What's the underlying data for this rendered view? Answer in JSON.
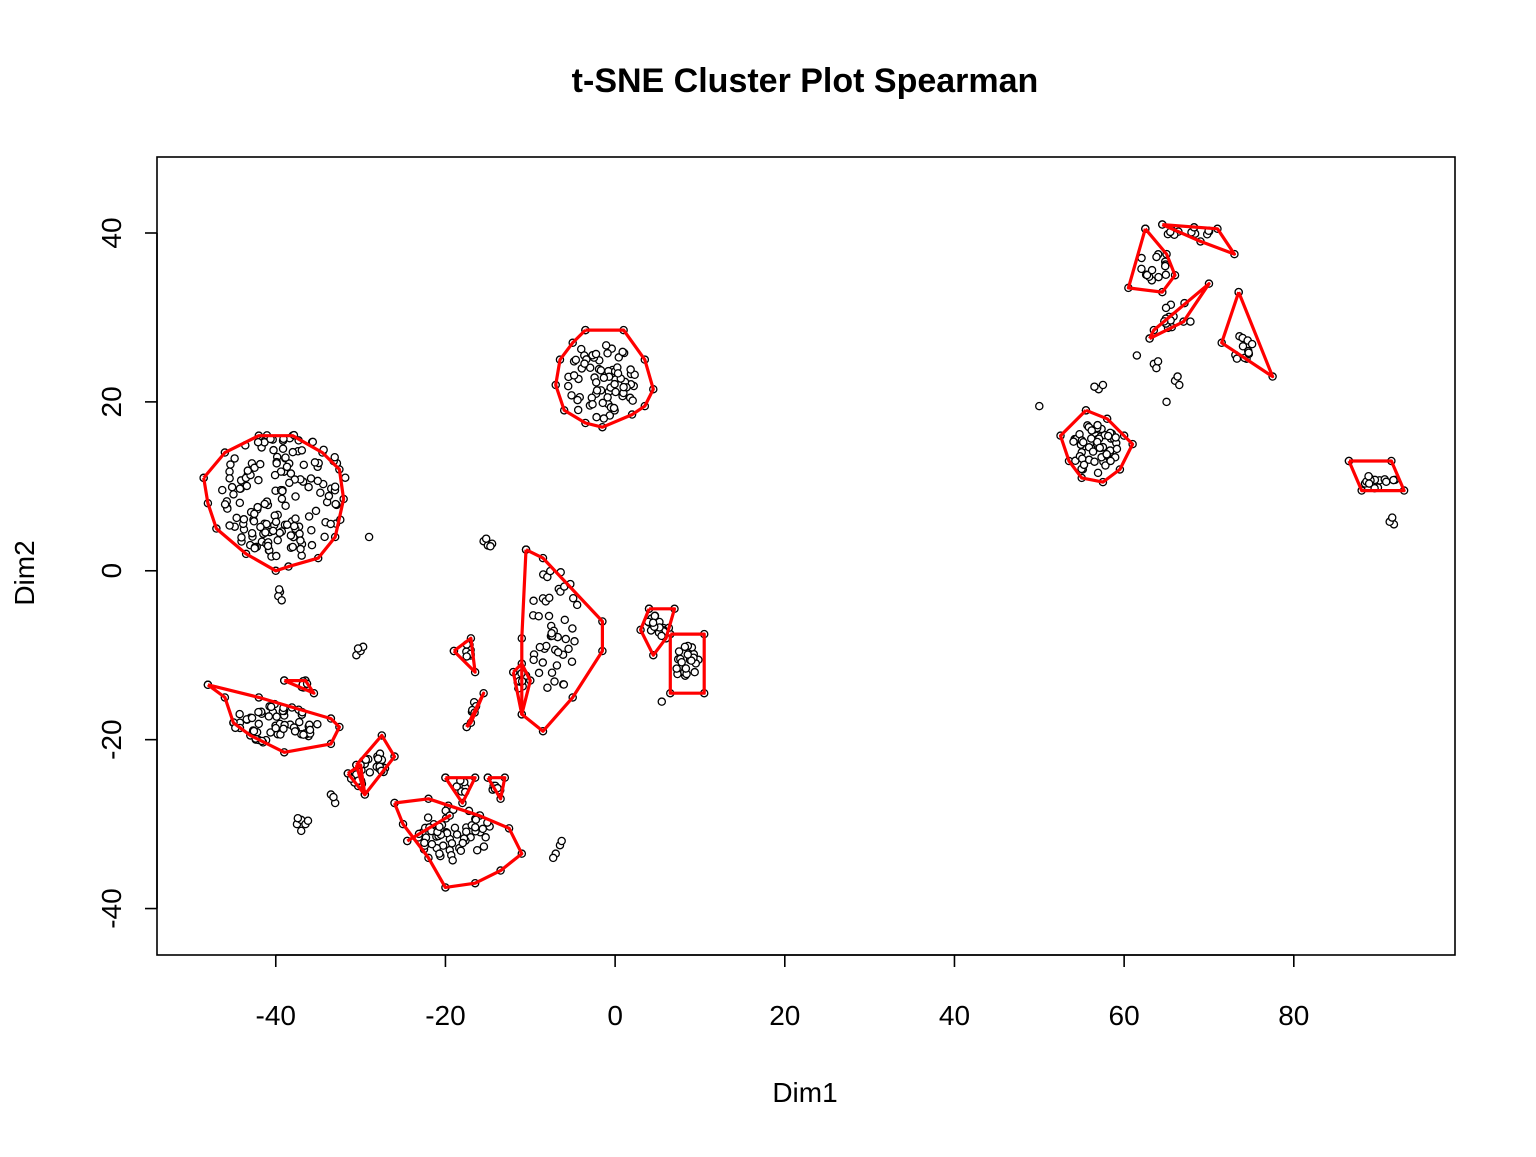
{
  "chart_data": {
    "type": "scatter",
    "title": "t-SNE Cluster Plot Spearman",
    "xlabel": "Dim1",
    "ylabel": "Dim2",
    "xlim": [
      -54,
      99
    ],
    "ylim": [
      -45.5,
      49
    ],
    "xticks": [
      -40,
      -20,
      0,
      20,
      40,
      60,
      80
    ],
    "xtick_labels": [
      "-40",
      "-20",
      "0",
      "20",
      "40",
      "60",
      "80"
    ],
    "yticks": [
      -40,
      -20,
      0,
      20,
      40
    ],
    "ytick_labels": [
      "-40",
      "-20",
      "0",
      "20",
      "40"
    ],
    "grid": false,
    "legend": "none",
    "colors": {
      "points": "#000000",
      "hulls": "#ff0000"
    },
    "clusters": [
      {
        "center": [
          -39,
          9
        ],
        "rx": 7.5,
        "ry": 7.5,
        "n": 160,
        "hull": [
          [
            -48.5,
            11
          ],
          [
            -46,
            14
          ],
          [
            -42,
            16
          ],
          [
            -38,
            16
          ],
          [
            -34.5,
            14
          ],
          [
            -32.5,
            12
          ],
          [
            -32,
            8.5
          ],
          [
            -33,
            4
          ],
          [
            -35,
            1.5
          ],
          [
            -38.5,
            0.5
          ],
          [
            -40,
            0
          ],
          [
            -43.5,
            2
          ],
          [
            -47,
            5
          ],
          [
            -48,
            8
          ],
          [
            -48.5,
            11
          ]
        ]
      },
      {
        "center": [
          -1.5,
          22.5
        ],
        "rx": 4.2,
        "ry": 4.8,
        "n": 70,
        "hull": [
          [
            -3.5,
            28.5
          ],
          [
            1,
            28.5
          ],
          [
            3.5,
            25
          ],
          [
            4.5,
            21.5
          ],
          [
            3.5,
            19.5
          ],
          [
            2,
            18.5
          ],
          [
            -1.5,
            17
          ],
          [
            -3.5,
            17.5
          ],
          [
            -6,
            19
          ],
          [
            -7,
            22
          ],
          [
            -6.5,
            25
          ],
          [
            -5,
            27
          ],
          [
            -3.5,
            28.5
          ]
        ]
      },
      {
        "center": [
          -7,
          -7
        ],
        "rx": 3.2,
        "ry": 7.5,
        "n": 45,
        "hull": [
          [
            -10.5,
            2.5
          ],
          [
            -8.5,
            1.5
          ],
          [
            -1.5,
            -6
          ],
          [
            -1.5,
            -9.5
          ],
          [
            -5,
            -15
          ],
          [
            -8.5,
            -19
          ],
          [
            -11,
            -17
          ],
          [
            -11,
            -8
          ],
          [
            -10.5,
            2.5
          ]
        ]
      },
      {
        "center": [
          -40,
          -18
        ],
        "rx": 5,
        "ry": 2.5,
        "n": 60,
        "hull": [
          [
            -48,
            -13.5
          ],
          [
            -46,
            -15
          ],
          [
            -45,
            -18
          ],
          [
            -43,
            -19.5
          ],
          [
            -39,
            -21.5
          ],
          [
            -33.5,
            -20.5
          ],
          [
            -32.5,
            -18.5
          ],
          [
            -33.5,
            -17.5
          ],
          [
            -42,
            -15
          ],
          [
            -48,
            -13.5
          ]
        ]
      },
      {
        "center": [
          -19,
          -31
        ],
        "rx": 4.5,
        "ry": 3.5,
        "n": 55,
        "hull": [
          [
            -26,
            -27.5
          ],
          [
            -22,
            -27
          ],
          [
            -16,
            -29
          ],
          [
            -12.5,
            -30.5
          ],
          [
            -11,
            -33.5
          ],
          [
            -13.5,
            -35.5
          ],
          [
            -16.5,
            -37
          ],
          [
            -20,
            -37.5
          ],
          [
            -22,
            -34
          ],
          [
            -25,
            -30
          ],
          [
            -26,
            -27.5
          ]
        ]
      },
      {
        "center": [
          56.5,
          14.5
        ],
        "rx": 3,
        "ry": 3,
        "n": 60,
        "hull": [
          [
            55.5,
            19
          ],
          [
            58,
            18
          ],
          [
            60,
            16
          ],
          [
            61,
            15
          ],
          [
            59.5,
            12
          ],
          [
            57.5,
            10.5
          ],
          [
            55,
            11
          ],
          [
            53.5,
            13
          ],
          [
            52.5,
            16
          ],
          [
            55.5,
            19
          ]
        ]
      },
      {
        "center": [
          90,
          11
        ],
        "rx": 2,
        "ry": 1.3,
        "n": 14,
        "hull": [
          [
            86.5,
            13
          ],
          [
            91.5,
            13
          ],
          [
            93,
            9.5
          ],
          [
            88,
            9.5
          ],
          [
            86.5,
            13
          ]
        ]
      },
      {
        "center": [
          67.5,
          40
        ],
        "rx": 3,
        "ry": 0.7,
        "n": 12,
        "hull": [
          [
            64.5,
            41
          ],
          [
            71,
            40.5
          ],
          [
            73,
            37.5
          ],
          [
            69,
            39
          ],
          [
            64.5,
            41
          ]
        ]
      },
      {
        "center": [
          63.5,
          36
        ],
        "rx": 1.8,
        "ry": 2,
        "n": 14,
        "hull": [
          [
            62.5,
            40.5
          ],
          [
            65,
            37.5
          ],
          [
            66,
            35
          ],
          [
            64.5,
            33
          ],
          [
            60.5,
            33.5
          ],
          [
            62.5,
            40.5
          ]
        ]
      },
      {
        "center": [
          66.5,
          30
        ],
        "rx": 2.5,
        "ry": 1.8,
        "n": 12,
        "hull": [
          [
            63,
            27.5
          ],
          [
            67,
            29.5
          ],
          [
            70,
            34
          ],
          [
            63.5,
            28.5
          ],
          [
            63,
            27.5
          ]
        ]
      },
      {
        "center": [
          74,
          26.5
        ],
        "rx": 1.2,
        "ry": 2,
        "n": 12,
        "hull": [
          [
            73.5,
            33
          ],
          [
            77.5,
            23
          ],
          [
            71.5,
            27
          ],
          [
            73.5,
            33
          ]
        ]
      },
      {
        "center": [
          8.5,
          -11
        ],
        "rx": 1.4,
        "ry": 2.3,
        "n": 22,
        "hull": [
          [
            6.5,
            -7.5
          ],
          [
            10.5,
            -7.5
          ],
          [
            10.5,
            -14.5
          ],
          [
            6.5,
            -14.5
          ],
          [
            6.5,
            -7.5
          ]
        ]
      },
      {
        "center": [
          5,
          -6.5
        ],
        "rx": 1.4,
        "ry": 1.4,
        "n": 16,
        "hull": [
          [
            4,
            -4.5
          ],
          [
            7,
            -4.5
          ],
          [
            6,
            -8
          ],
          [
            4.5,
            -10
          ],
          [
            3,
            -7
          ],
          [
            4,
            -4.5
          ]
        ]
      },
      {
        "center": [
          -28.5,
          -23
        ],
        "rx": 1.6,
        "ry": 1.7,
        "n": 18,
        "hull": [
          [
            -30.5,
            -23
          ],
          [
            -27.5,
            -19.5
          ],
          [
            -26,
            -22
          ],
          [
            -29.5,
            -26.5
          ],
          [
            -30.5,
            -23
          ]
        ]
      },
      {
        "center": [
          -30.5,
          -25
        ],
        "rx": 0.8,
        "ry": 0.9,
        "n": 8,
        "hull": [
          [
            -31.5,
            -24
          ],
          [
            -30,
            -23
          ],
          [
            -29.5,
            -26.5
          ],
          [
            -31.5,
            -24
          ]
        ]
      },
      {
        "center": [
          -17.5,
          -9.5
        ],
        "rx": 0.6,
        "ry": 1.2,
        "n": 7,
        "hull": [
          [
            -19,
            -9.5
          ],
          [
            -17,
            -8
          ],
          [
            -16.5,
            -12
          ],
          [
            -19,
            -9.5
          ]
        ]
      },
      {
        "center": [
          -16.5,
          -16.5
        ],
        "rx": 0.5,
        "ry": 1,
        "n": 6,
        "hull": [
          [
            -17.5,
            -18.5
          ],
          [
            -15.5,
            -14.5
          ],
          [
            -17,
            -18
          ],
          [
            -17.5,
            -18.5
          ]
        ]
      },
      {
        "center": [
          -11,
          -13
        ],
        "rx": 0.6,
        "ry": 1.3,
        "n": 9,
        "hull": [
          [
            -12,
            -12
          ],
          [
            -11,
            -11
          ],
          [
            -10,
            -13
          ],
          [
            -11,
            -17
          ],
          [
            -12,
            -12
          ]
        ]
      },
      {
        "center": [
          -18,
          -25.5
        ],
        "rx": 0.8,
        "ry": 0.8,
        "n": 7,
        "hull": [
          [
            -20,
            -24.5
          ],
          [
            -16.5,
            -24.5
          ],
          [
            -18,
            -27.5
          ],
          [
            -20,
            -24.5
          ]
        ]
      },
      {
        "center": [
          -14,
          -25.5
        ],
        "rx": 0.7,
        "ry": 0.7,
        "n": 6,
        "hull": [
          [
            -15,
            -24.5
          ],
          [
            -13,
            -24.5
          ],
          [
            -13.5,
            -27
          ],
          [
            -15,
            -24.5
          ]
        ]
      },
      {
        "center": [
          -37,
          -13.5
        ],
        "rx": 0.8,
        "ry": 0.6,
        "n": 6,
        "hull": [
          [
            -39,
            -13
          ],
          [
            -36.5,
            -13
          ],
          [
            -35.5,
            -14.5
          ],
          [
            -39,
            -13
          ]
        ]
      },
      {
        "center": [
          -22,
          -30.5
        ],
        "rx": 1.5,
        "ry": 0.8,
        "n": 6,
        "hull": [
          [
            -24.5,
            -32
          ],
          [
            -19.5,
            -29
          ],
          [
            -24.5,
            -32
          ]
        ]
      }
    ],
    "isolated_points": [
      [
        -39.5,
        -2.5
      ],
      [
        -39.7,
        -3
      ],
      [
        -39.3,
        -3.5
      ],
      [
        -39.6,
        -2.2
      ],
      [
        -29,
        4
      ],
      [
        -30.5,
        -10
      ],
      [
        -30,
        -9.5
      ],
      [
        -29.7,
        -9
      ],
      [
        -30.3,
        -9.2
      ],
      [
        -33.5,
        -26.5
      ],
      [
        -33,
        -27.5
      ],
      [
        -33.2,
        -26.8
      ],
      [
        -37.5,
        -30
      ],
      [
        -37,
        -29.5
      ],
      [
        -36.5,
        -30
      ],
      [
        -37,
        -30.8
      ],
      [
        -36.2,
        -29.6
      ],
      [
        -37.4,
        -29.3
      ],
      [
        -15.5,
        3.5
      ],
      [
        -15,
        3
      ],
      [
        -14.5,
        3.2
      ],
      [
        -15.2,
        3.8
      ],
      [
        -14.7,
        2.9
      ],
      [
        -7,
        -33.5
      ],
      [
        -6.5,
        -32.5
      ],
      [
        -6.3,
        -32
      ],
      [
        -7.3,
        -34
      ],
      [
        5.5,
        -15.5
      ],
      [
        50,
        19.5
      ],
      [
        57,
        21.5
      ],
      [
        57.5,
        22
      ],
      [
        56.5,
        21.8
      ],
      [
        61.5,
        25.5
      ],
      [
        63.5,
        24.5
      ],
      [
        63.8,
        24
      ],
      [
        64,
        24.8
      ],
      [
        65,
        20
      ],
      [
        66,
        22.5
      ],
      [
        66.5,
        22
      ],
      [
        66.3,
        23
      ],
      [
        91.5,
        6
      ],
      [
        91.8,
        5.5
      ],
      [
        91.3,
        5.8
      ],
      [
        91.6,
        6.3
      ]
    ]
  }
}
